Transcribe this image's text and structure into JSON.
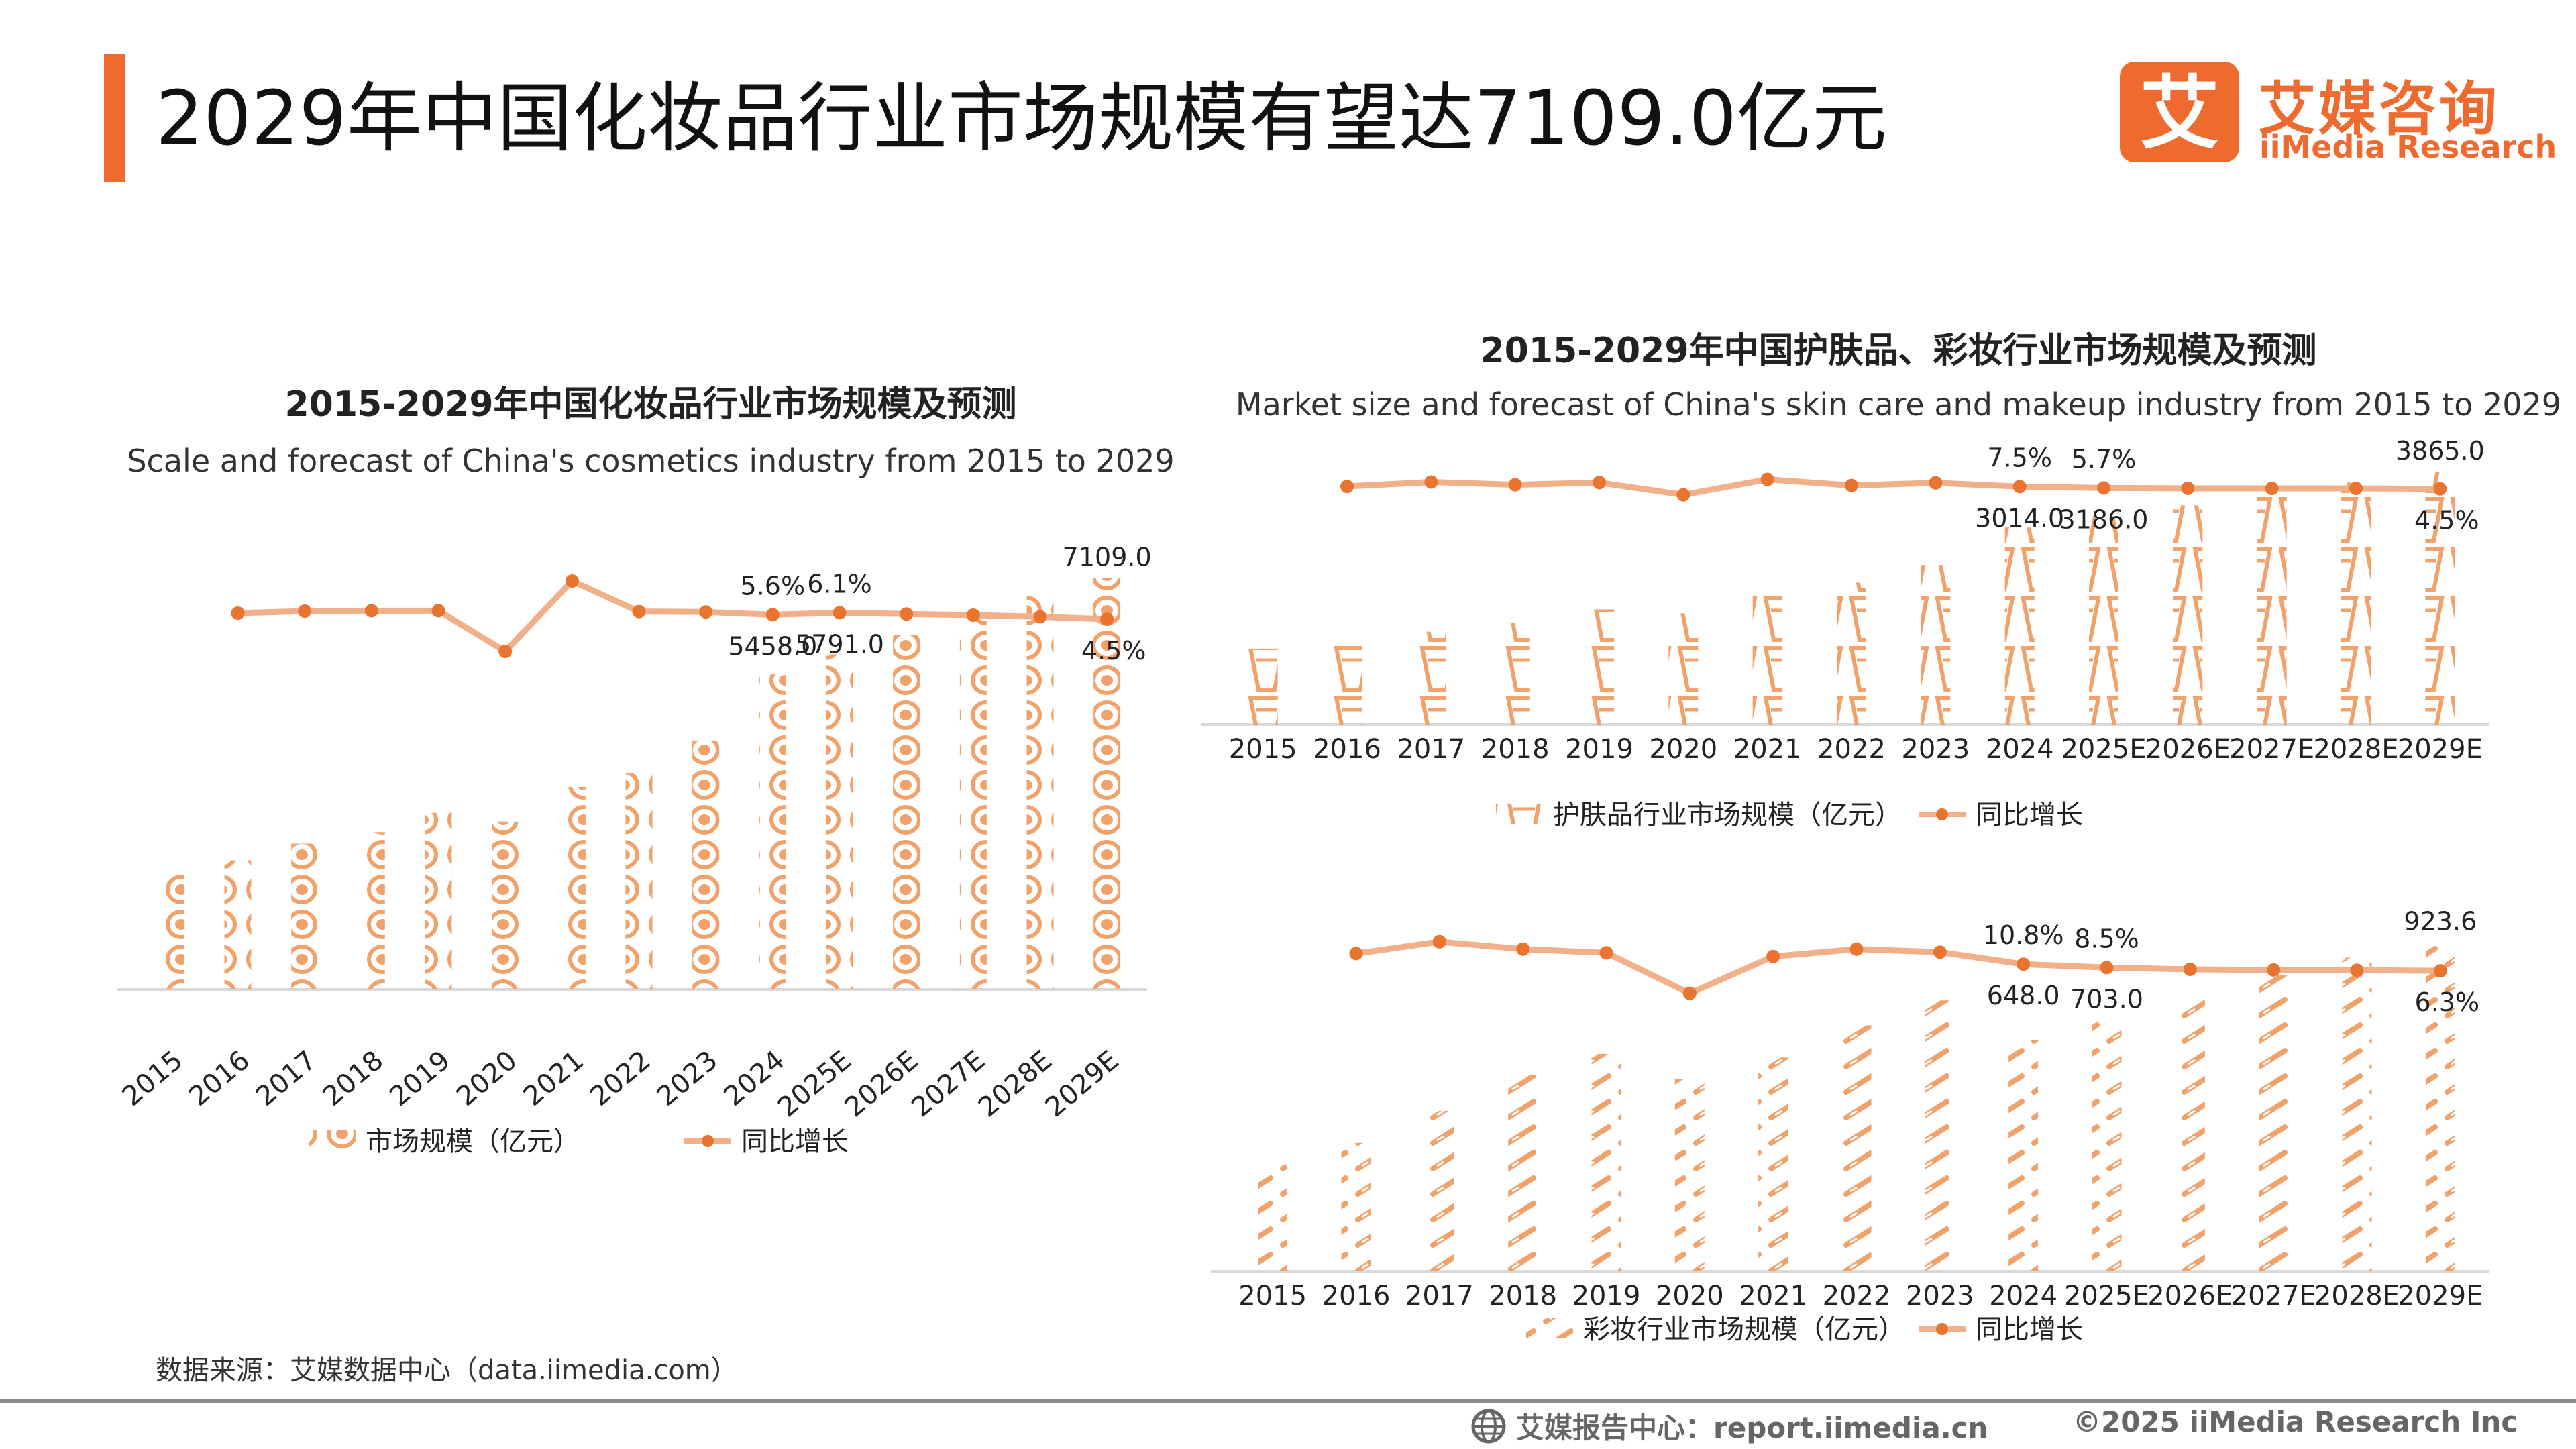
{
  "header": {
    "title": "2029年中国化妆品行业市场规模有望达7109.0亿元",
    "logo_cn": "艾媒咨询",
    "logo_en": "iiMedia Research",
    "logo_mark": "艾"
  },
  "colors": {
    "accent": "#ee6a2f",
    "bar": "#f0a26a",
    "line": "#f2b08a",
    "dot": "#e8742f"
  },
  "chart_data": [
    {
      "id": "cosmetics",
      "type": "bar",
      "title": "2015-2029年中国化妆品行业市场规模及预测",
      "subtitle": "Scale and forecast of China's cosmetics industry from 2015 to 2029",
      "categories": [
        "2015",
        "2016",
        "2017",
        "2018",
        "2019",
        "2020",
        "2021",
        "2022",
        "2023",
        "2024",
        "2025E",
        "2026E",
        "2027E",
        "2028E",
        "2029E"
      ],
      "series": [
        {
          "name": "市场规模（亿元）",
          "kind": "bar",
          "values": [
            2050,
            2230,
            2520,
            2720,
            3050,
            2900,
            3500,
            3730,
            4300,
            5458.0,
            5791.0,
            6120,
            6480,
            6790,
            7109.0
          ]
        },
        {
          "name": "同比增长",
          "kind": "line",
          "values": [
            null,
            6.0,
            6.5,
            6.6,
            6.6,
            -3.5,
            14.0,
            6.4,
            6.3,
            5.6,
            6.1,
            5.8,
            5.5,
            5.1,
            4.5
          ]
        }
      ],
      "bar_ylim": [
        0,
        7300
      ],
      "line_ylim": [
        -15,
        15
      ],
      "data_labels": [
        {
          "series": 0,
          "index": 9,
          "text": "5458.0"
        },
        {
          "series": 0,
          "index": 10,
          "text": "5791.0"
        },
        {
          "series": 0,
          "index": 14,
          "text": "7109.0"
        },
        {
          "series": 1,
          "index": 9,
          "text": "5.6%"
        },
        {
          "series": 1,
          "index": 10,
          "text": "6.1%"
        },
        {
          "series": 1,
          "index": 14,
          "text": "4.5%"
        }
      ],
      "legend": [
        "市场规模（亿元）",
        "同比增长"
      ],
      "legend_position": "bottom"
    },
    {
      "id": "skincare",
      "type": "bar",
      "title": "2015-2029年中国护肤品、彩妆行业市场规模及预测",
      "subtitle": "Market size and forecast of China's skin care and makeup industry from 2015 to 2029",
      "categories": [
        "2015",
        "2016",
        "2017",
        "2018",
        "2019",
        "2020",
        "2021",
        "2022",
        "2023",
        "2024",
        "2025E",
        "2026E",
        "2027E",
        "2028E",
        "2029E"
      ],
      "series": [
        {
          "name": "护肤品行业市场规模（亿元）",
          "kind": "bar",
          "values": [
            1160,
            1250,
            1420,
            1560,
            1760,
            1700,
            1990,
            2170,
            2440,
            3014.0,
            3186.0,
            3350,
            3520,
            3700,
            3865.0
          ]
        },
        {
          "name": "同比增长",
          "kind": "line",
          "values": [
            null,
            7.7,
            13.6,
            9.9,
            12.8,
            -3.4,
            17.1,
            9.0,
            12.4,
            7.5,
            5.7,
            5.2,
            5.1,
            5.1,
            4.5
          ]
        }
      ],
      "bar_ylim": [
        0,
        4000
      ],
      "line_ylim": [
        -50,
        30
      ],
      "data_labels": [
        {
          "series": 0,
          "index": 9,
          "text": "3014.0"
        },
        {
          "series": 0,
          "index": 10,
          "text": "3186.0"
        },
        {
          "series": 0,
          "index": 14,
          "text": "3865.0"
        },
        {
          "series": 1,
          "index": 9,
          "text": "7.5%"
        },
        {
          "series": 1,
          "index": 10,
          "text": "5.7%"
        },
        {
          "series": 1,
          "index": 14,
          "text": "4.5%"
        }
      ],
      "legend": [
        "护肤品行业市场规模（亿元）",
        "同比增长"
      ],
      "legend_position": "bottom"
    },
    {
      "id": "makeup",
      "type": "bar",
      "title": "",
      "subtitle": "",
      "categories": [
        "2015",
        "2016",
        "2017",
        "2018",
        "2019",
        "2020",
        "2021",
        "2022",
        "2023",
        "2024",
        "2025E",
        "2026E",
        "2027E",
        "2028E",
        "2029E"
      ],
      "series": [
        {
          "name": "彩妆行业市场规模（亿元）",
          "kind": "bar",
          "values": [
            300,
            360,
            450,
            550,
            610,
            540,
            600,
            690,
            760,
            648.0,
            703.0,
            770,
            830,
            880,
            923.6
          ]
        },
        {
          "name": "同比增长",
          "kind": "line",
          "values": [
            null,
            18.0,
            26.0,
            21.0,
            18.5,
            -9.0,
            16.0,
            21.0,
            19.0,
            10.8,
            8.5,
            7.3,
            6.9,
            6.7,
            6.3
          ]
        }
      ],
      "bar_ylim": [
        0,
        960
      ],
      "line_ylim": [
        -45,
        30
      ],
      "data_labels": [
        {
          "series": 0,
          "index": 9,
          "text": "648.0"
        },
        {
          "series": 0,
          "index": 10,
          "text": "703.0"
        },
        {
          "series": 0,
          "index": 14,
          "text": "923.6"
        },
        {
          "series": 1,
          "index": 9,
          "text": "10.8%"
        },
        {
          "series": 1,
          "index": 10,
          "text": "8.5%"
        },
        {
          "series": 1,
          "index": 14,
          "text": "6.3%"
        }
      ],
      "legend": [
        "彩妆行业市场规模（亿元）",
        "同比增长"
      ],
      "legend_position": "bottom"
    }
  ],
  "footer": {
    "source": "数据来源：艾媒数据中心（data.iimedia.com）",
    "report": "艾媒报告中心：report.iimedia.cn",
    "copyright": "©2025  iiMedia Research  Inc"
  }
}
